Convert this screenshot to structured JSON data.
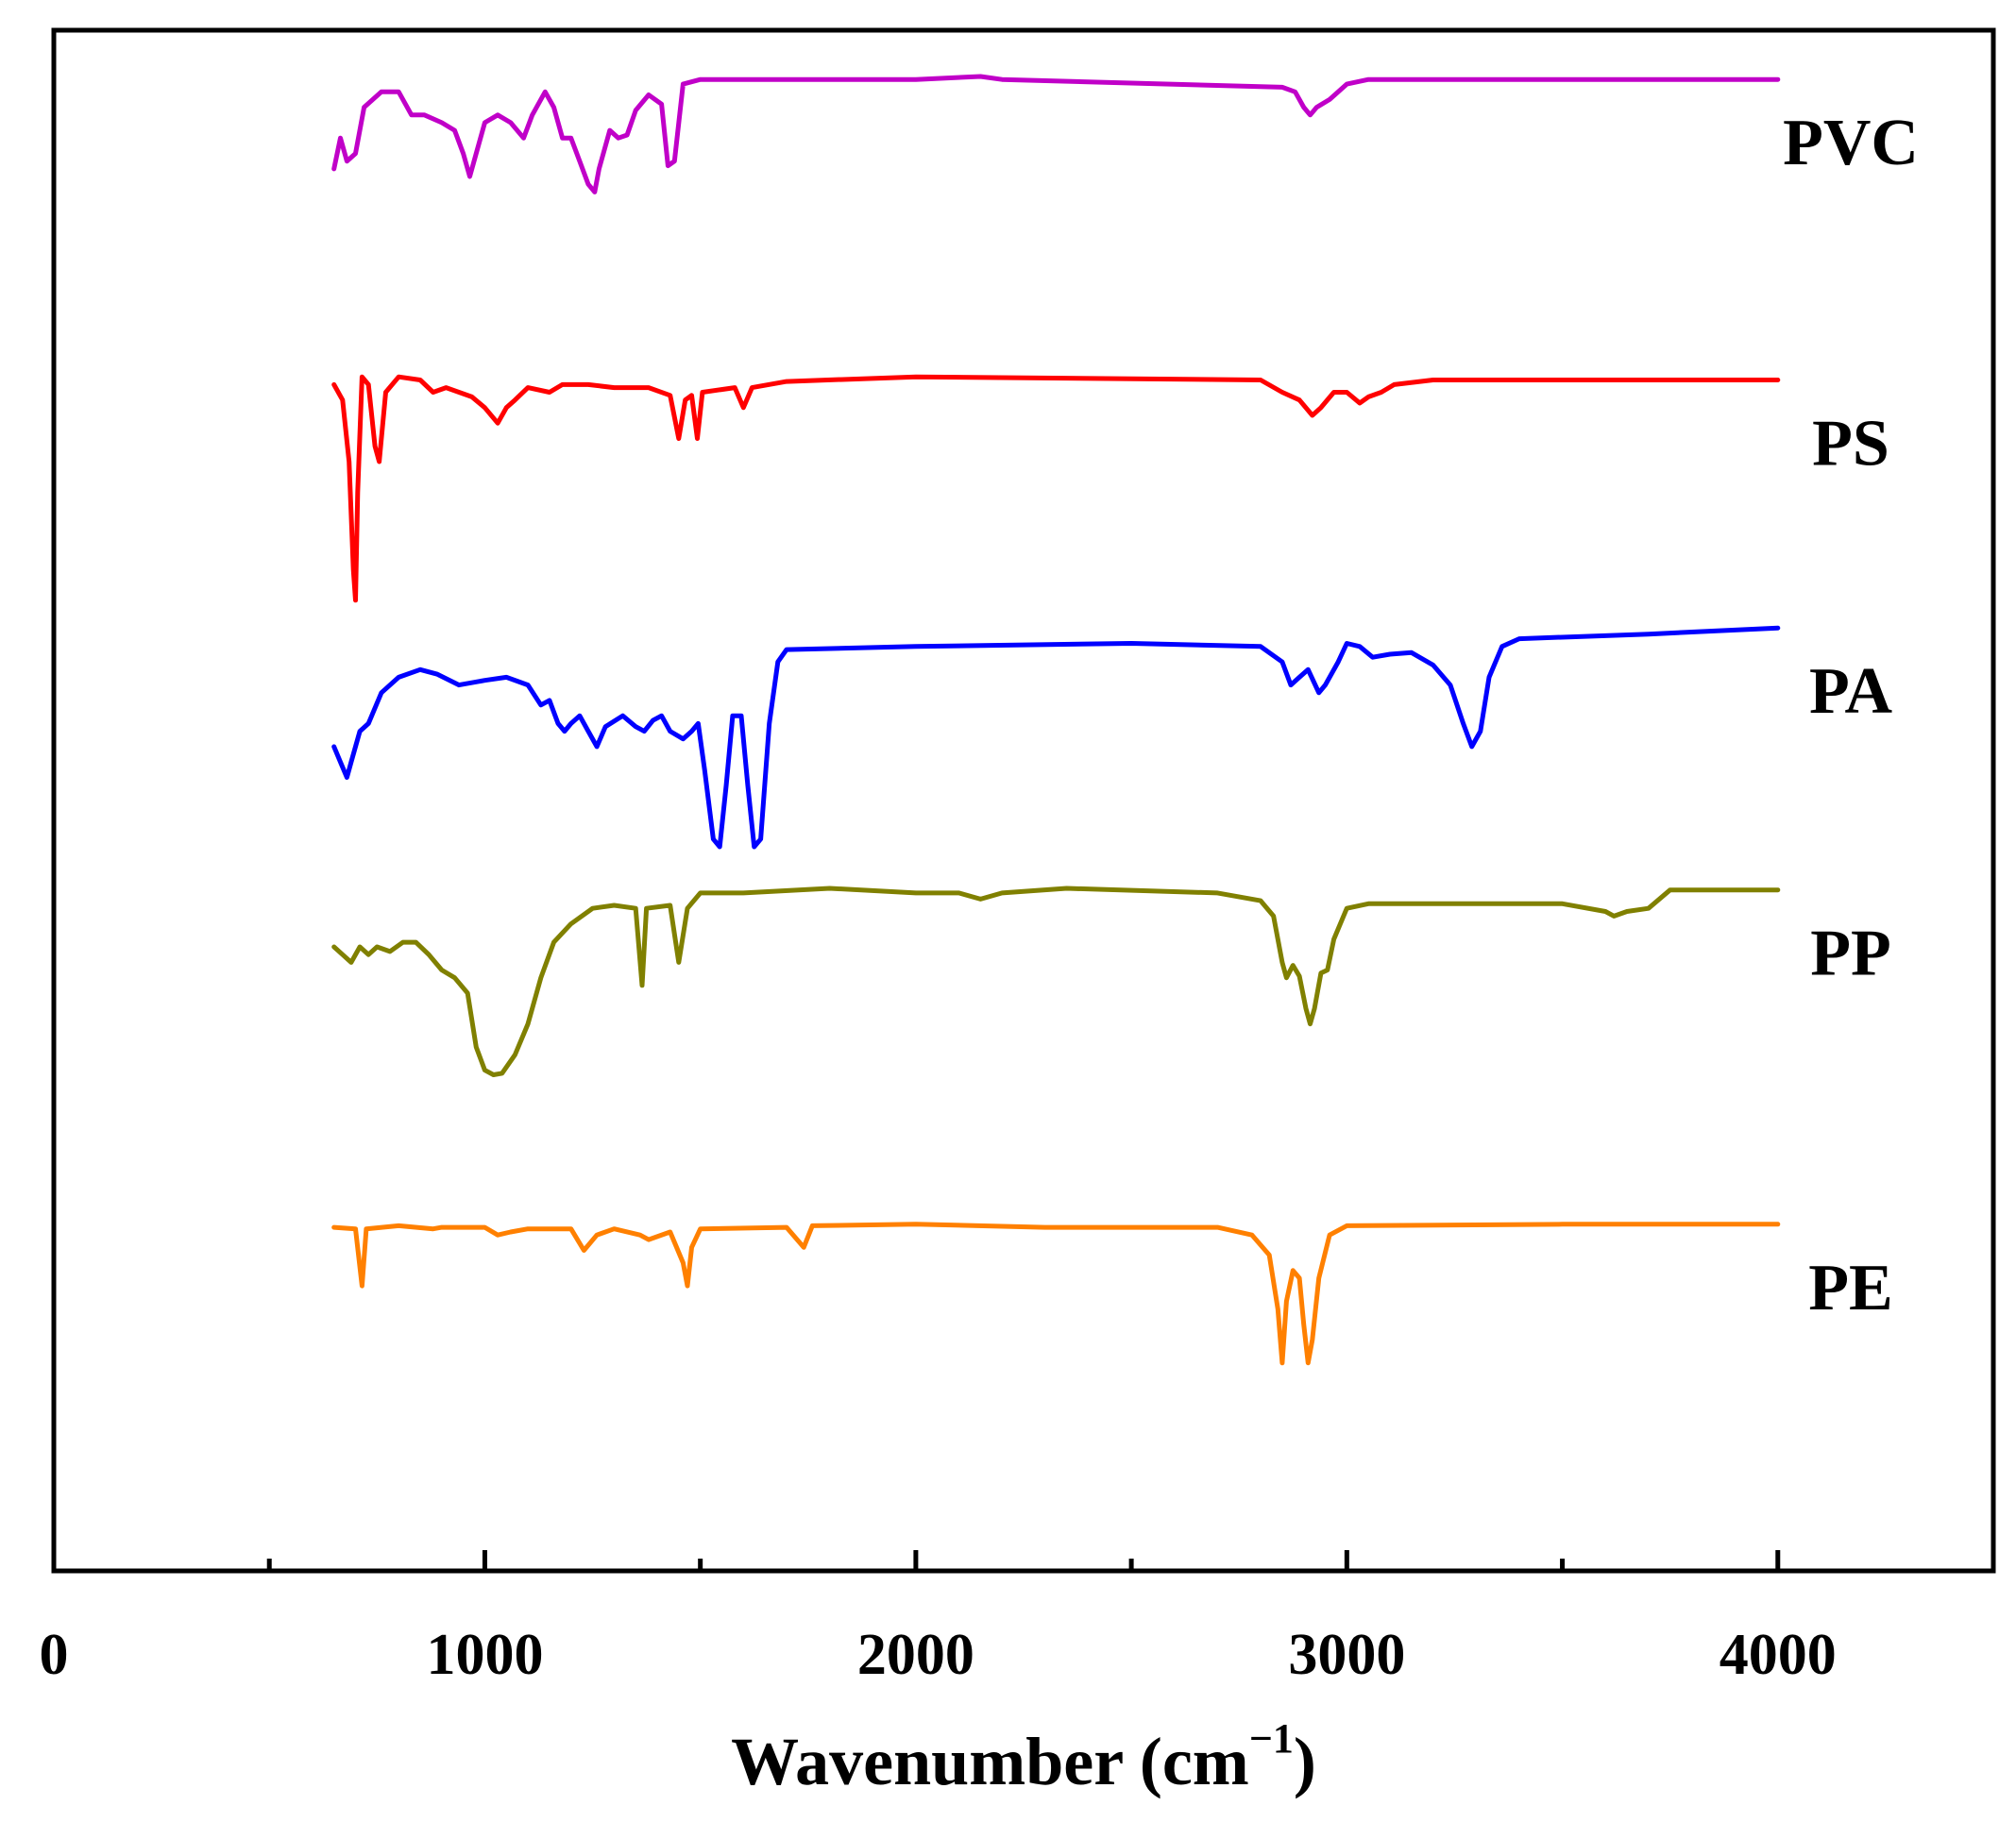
{
  "chart_data": {
    "type": "line",
    "title": "",
    "xlabel": "Wavenumber (cm",
    "xlabel_sup": "−1",
    "xlabel_close": ")",
    "ylabel": "",
    "xlim": [
      0,
      4500
    ],
    "ylim": [
      0,
      100
    ],
    "x_ticks": [
      {
        "value": 0,
        "label": "0"
      },
      {
        "value": 1000,
        "label": "1000"
      },
      {
        "value": 2000,
        "label": "2000"
      },
      {
        "value": 3000,
        "label": "3000"
      },
      {
        "value": 4000,
        "label": "4000"
      }
    ],
    "minor_ticks": [
      500,
      1500,
      2500,
      3500
    ],
    "grid": false,
    "legend": "labels at right end of each trace",
    "series": [
      {
        "name": "PVC",
        "color": "#c000c8",
        "points": [
          [
            650,
            91
          ],
          [
            665,
            93
          ],
          [
            680,
            91.5
          ],
          [
            700,
            92
          ],
          [
            720,
            95
          ],
          [
            760,
            96
          ],
          [
            800,
            96
          ],
          [
            830,
            94.5
          ],
          [
            860,
            94.5
          ],
          [
            900,
            94
          ],
          [
            930,
            93.5
          ],
          [
            950,
            92
          ],
          [
            965,
            90.5
          ],
          [
            980,
            92
          ],
          [
            1000,
            94
          ],
          [
            1030,
            94.5
          ],
          [
            1060,
            94
          ],
          [
            1090,
            93
          ],
          [
            1110,
            94.5
          ],
          [
            1140,
            96
          ],
          [
            1160,
            95
          ],
          [
            1180,
            93
          ],
          [
            1200,
            93
          ],
          [
            1220,
            91.5
          ],
          [
            1240,
            90
          ],
          [
            1255,
            89.5
          ],
          [
            1265,
            91
          ],
          [
            1290,
            93.5
          ],
          [
            1310,
            93
          ],
          [
            1330,
            93.2
          ],
          [
            1350,
            94.8
          ],
          [
            1380,
            95.8
          ],
          [
            1410,
            95.2
          ],
          [
            1425,
            91.2
          ],
          [
            1440,
            91.5
          ],
          [
            1460,
            96.5
          ],
          [
            1500,
            96.8
          ],
          [
            2000,
            96.8
          ],
          [
            2150,
            97
          ],
          [
            2200,
            96.8
          ],
          [
            2850,
            96.3
          ],
          [
            2880,
            96
          ],
          [
            2900,
            95
          ],
          [
            2915,
            94.5
          ],
          [
            2930,
            95
          ],
          [
            2960,
            95.5
          ],
          [
            2980,
            96
          ],
          [
            3000,
            96.5
          ],
          [
            3050,
            96.8
          ],
          [
            3500,
            96.8
          ],
          [
            4000,
            96.8
          ]
        ]
      },
      {
        "name": "PS",
        "color": "#ff0000",
        "points": [
          [
            650,
            77
          ],
          [
            670,
            76
          ],
          [
            685,
            72
          ],
          [
            695,
            65
          ],
          [
            700,
            63
          ],
          [
            705,
            70
          ],
          [
            715,
            77.5
          ],
          [
            730,
            77
          ],
          [
            745,
            73
          ],
          [
            755,
            72
          ],
          [
            770,
            76.5
          ],
          [
            800,
            77.5
          ],
          [
            850,
            77.3
          ],
          [
            880,
            76.5
          ],
          [
            910,
            76.8
          ],
          [
            940,
            76.5
          ],
          [
            970,
            76.2
          ],
          [
            1000,
            75.5
          ],
          [
            1030,
            74.5
          ],
          [
            1050,
            75.5
          ],
          [
            1070,
            76
          ],
          [
            1100,
            76.8
          ],
          [
            1150,
            76.5
          ],
          [
            1180,
            77
          ],
          [
            1240,
            77
          ],
          [
            1300,
            76.8
          ],
          [
            1380,
            76.8
          ],
          [
            1430,
            76.3
          ],
          [
            1450,
            73.5
          ],
          [
            1465,
            76
          ],
          [
            1480,
            76.3
          ],
          [
            1493,
            73.5
          ],
          [
            1505,
            76.5
          ],
          [
            1580,
            76.8
          ],
          [
            1600,
            75.5
          ],
          [
            1620,
            76.8
          ],
          [
            1700,
            77.2
          ],
          [
            2000,
            77.5
          ],
          [
            2800,
            77.3
          ],
          [
            2850,
            76.5
          ],
          [
            2890,
            76
          ],
          [
            2920,
            75
          ],
          [
            2940,
            75.5
          ],
          [
            2970,
            76.5
          ],
          [
            3000,
            76.5
          ],
          [
            3030,
            75.8
          ],
          [
            3050,
            76.2
          ],
          [
            3080,
            76.5
          ],
          [
            3110,
            77
          ],
          [
            3200,
            77.3
          ],
          [
            3500,
            77.3
          ],
          [
            4000,
            77.3
          ]
        ]
      },
      {
        "name": "PA",
        "color": "#0000ff",
        "points": [
          [
            650,
            53.5
          ],
          [
            665,
            52.5
          ],
          [
            680,
            51.5
          ],
          [
            690,
            52.5
          ],
          [
            710,
            54.5
          ],
          [
            730,
            55
          ],
          [
            760,
            57
          ],
          [
            800,
            58
          ],
          [
            850,
            58.5
          ],
          [
            890,
            58.2
          ],
          [
            940,
            57.5
          ],
          [
            1000,
            57.8
          ],
          [
            1050,
            58
          ],
          [
            1100,
            57.5
          ],
          [
            1130,
            56.2
          ],
          [
            1150,
            56.5
          ],
          [
            1170,
            55
          ],
          [
            1185,
            54.5
          ],
          [
            1200,
            55
          ],
          [
            1220,
            55.5
          ],
          [
            1240,
            54.5
          ],
          [
            1260,
            53.5
          ],
          [
            1280,
            54.8
          ],
          [
            1320,
            55.5
          ],
          [
            1350,
            54.8
          ],
          [
            1370,
            54.5
          ],
          [
            1390,
            55.2
          ],
          [
            1410,
            55.5
          ],
          [
            1430,
            54.5
          ],
          [
            1460,
            54
          ],
          [
            1480,
            54.5
          ],
          [
            1495,
            55
          ],
          [
            1510,
            52
          ],
          [
            1530,
            47.5
          ],
          [
            1545,
            47
          ],
          [
            1560,
            51
          ],
          [
            1575,
            55.5
          ],
          [
            1595,
            55.5
          ],
          [
            1610,
            51
          ],
          [
            1625,
            47
          ],
          [
            1640,
            47.5
          ],
          [
            1660,
            55
          ],
          [
            1680,
            59
          ],
          [
            1700,
            59.8
          ],
          [
            2000,
            60
          ],
          [
            2500,
            60.2
          ],
          [
            2800,
            60
          ],
          [
            2850,
            59
          ],
          [
            2870,
            57.5
          ],
          [
            2890,
            58
          ],
          [
            2910,
            58.5
          ],
          [
            2935,
            57
          ],
          [
            2950,
            57.5
          ],
          [
            2980,
            59
          ],
          [
            3000,
            60.2
          ],
          [
            3030,
            60
          ],
          [
            3060,
            59.3
          ],
          [
            3100,
            59.5
          ],
          [
            3150,
            59.6
          ],
          [
            3200,
            58.8
          ],
          [
            3240,
            57.5
          ],
          [
            3270,
            55
          ],
          [
            3290,
            53.5
          ],
          [
            3310,
            54.5
          ],
          [
            3330,
            58
          ],
          [
            3360,
            60
          ],
          [
            3400,
            60.5
          ],
          [
            3700,
            60.8
          ],
          [
            4000,
            61.2
          ]
        ]
      },
      {
        "name": "PP",
        "color": "#808000",
        "points": [
          [
            650,
            40.5
          ],
          [
            670,
            40
          ],
          [
            690,
            39.5
          ],
          [
            710,
            40.5
          ],
          [
            730,
            40
          ],
          [
            750,
            40.5
          ],
          [
            780,
            40.2
          ],
          [
            810,
            40.8
          ],
          [
            840,
            40.8
          ],
          [
            870,
            40
          ],
          [
            900,
            39
          ],
          [
            930,
            38.5
          ],
          [
            960,
            37.5
          ],
          [
            980,
            34
          ],
          [
            1000,
            32.5
          ],
          [
            1020,
            32.2
          ],
          [
            1040,
            32.3
          ],
          [
            1070,
            33.5
          ],
          [
            1100,
            35.5
          ],
          [
            1130,
            38.5
          ],
          [
            1160,
            40.8
          ],
          [
            1200,
            42
          ],
          [
            1250,
            43
          ],
          [
            1300,
            43.2
          ],
          [
            1350,
            43
          ],
          [
            1365,
            38
          ],
          [
            1375,
            43
          ],
          [
            1430,
            43.2
          ],
          [
            1450,
            39.5
          ],
          [
            1470,
            43
          ],
          [
            1500,
            44
          ],
          [
            1600,
            44
          ],
          [
            1800,
            44.3
          ],
          [
            2000,
            44
          ],
          [
            2100,
            44
          ],
          [
            2150,
            43.6
          ],
          [
            2200,
            44
          ],
          [
            2350,
            44.3
          ],
          [
            2700,
            44
          ],
          [
            2800,
            43.5
          ],
          [
            2830,
            42.5
          ],
          [
            2850,
            39.5
          ],
          [
            2860,
            38.5
          ],
          [
            2875,
            39.3
          ],
          [
            2890,
            38.6
          ],
          [
            2905,
            36.5
          ],
          [
            2915,
            35.5
          ],
          [
            2925,
            36.5
          ],
          [
            2940,
            38.8
          ],
          [
            2955,
            39
          ],
          [
            2970,
            41
          ],
          [
            3000,
            43
          ],
          [
            3050,
            43.3
          ],
          [
            3500,
            43.3
          ],
          [
            3600,
            42.8
          ],
          [
            3620,
            42.5
          ],
          [
            3650,
            42.8
          ],
          [
            3700,
            43
          ],
          [
            3750,
            44.2
          ],
          [
            4000,
            44.2
          ]
        ]
      },
      {
        "name": "PE",
        "color": "#ff8000",
        "points": [
          [
            650,
            22.3
          ],
          [
            700,
            22.2
          ],
          [
            715,
            18.5
          ],
          [
            725,
            22.2
          ],
          [
            800,
            22.4
          ],
          [
            880,
            22.2
          ],
          [
            900,
            22.3
          ],
          [
            1000,
            22.3
          ],
          [
            1030,
            21.8
          ],
          [
            1060,
            22
          ],
          [
            1100,
            22.2
          ],
          [
            1200,
            22.2
          ],
          [
            1230,
            20.8
          ],
          [
            1260,
            21.8
          ],
          [
            1300,
            22.2
          ],
          [
            1360,
            21.8
          ],
          [
            1380,
            21.5
          ],
          [
            1430,
            22
          ],
          [
            1460,
            20
          ],
          [
            1470,
            18.5
          ],
          [
            1480,
            21
          ],
          [
            1500,
            22.2
          ],
          [
            1700,
            22.3
          ],
          [
            1740,
            21
          ],
          [
            1760,
            22.4
          ],
          [
            2000,
            22.5
          ],
          [
            2300,
            22.3
          ],
          [
            2700,
            22.3
          ],
          [
            2780,
            21.8
          ],
          [
            2820,
            20.5
          ],
          [
            2840,
            17
          ],
          [
            2850,
            13.5
          ],
          [
            2860,
            17.5
          ],
          [
            2875,
            19.5
          ],
          [
            2890,
            19
          ],
          [
            2900,
            16
          ],
          [
            2910,
            13.5
          ],
          [
            2920,
            15
          ],
          [
            2935,
            19
          ],
          [
            2960,
            21.8
          ],
          [
            3000,
            22.4
          ],
          [
            3500,
            22.5
          ],
          [
            4000,
            22.5
          ]
        ]
      }
    ]
  }
}
